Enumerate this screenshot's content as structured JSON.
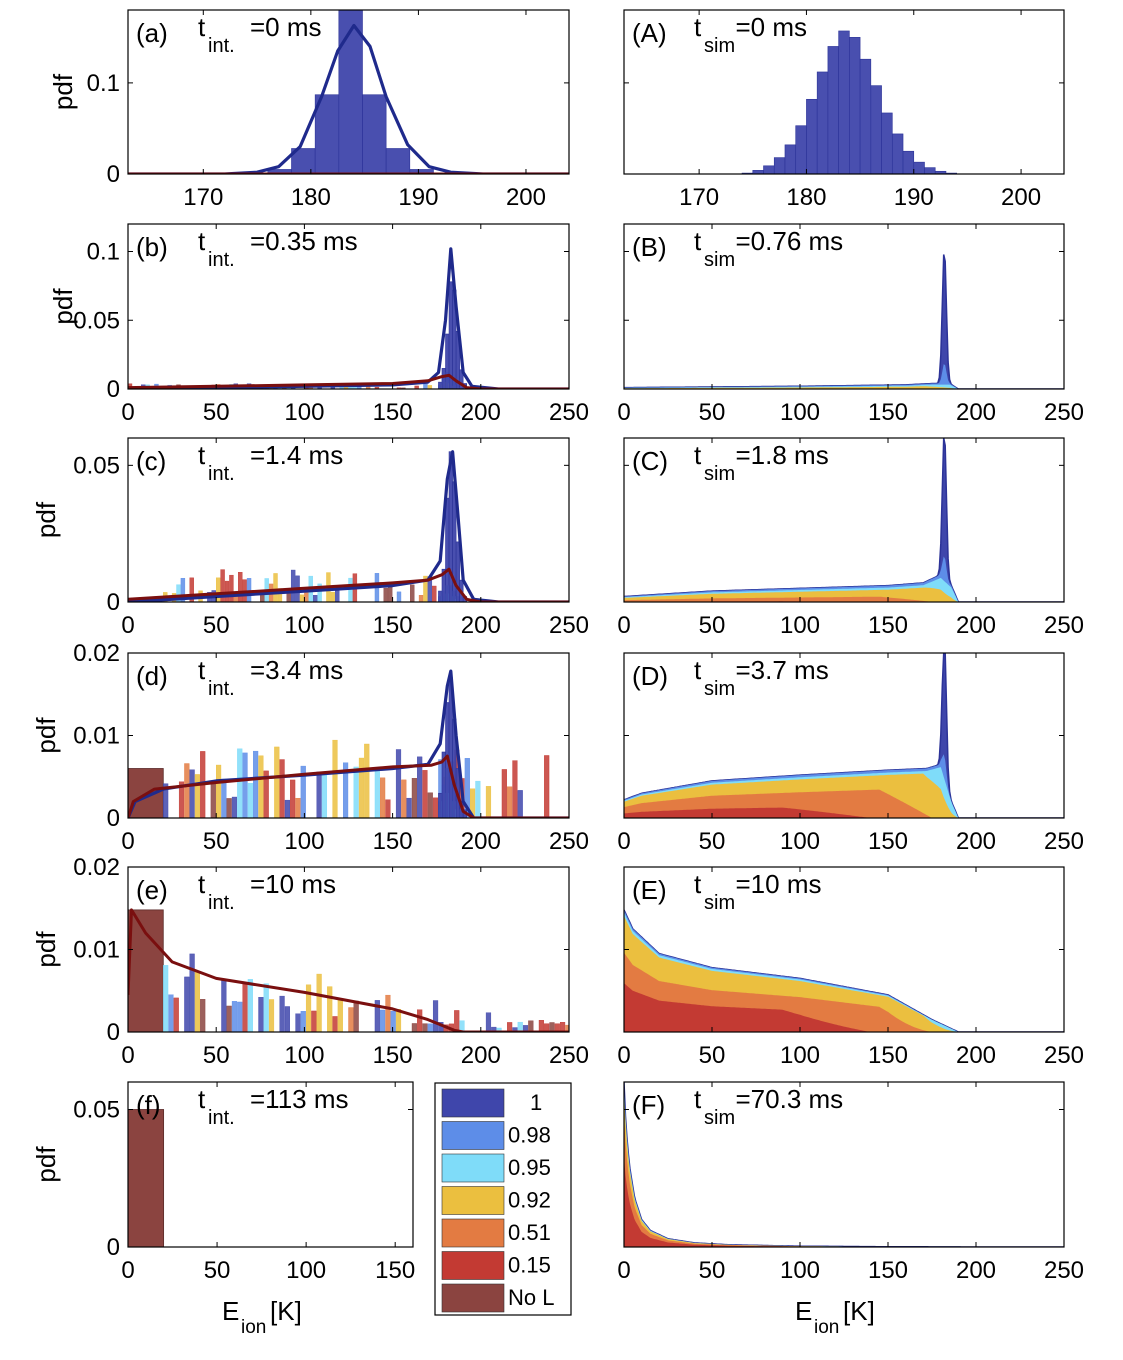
{
  "figure": {
    "xlabel_main": "E",
    "xlabel_sub": "ion",
    "xlabel_unit": " [K]",
    "ylabel": "pdf"
  },
  "legend": {
    "entries": [
      {
        "label": "1",
        "color": "#3f46ab"
      },
      {
        "label": "0.98",
        "color": "#5d8de8"
      },
      {
        "label": "0.95",
        "color": "#7fdcf9"
      },
      {
        "label": "0.92",
        "color": "#ebbf3f"
      },
      {
        "label": "0.51",
        "color": "#e37b42"
      },
      {
        "label": "0.15",
        "color": "#c33a33"
      },
      {
        "label": "No L",
        "color": "#8b4440"
      }
    ]
  },
  "colors": {
    "fit_line_blue": "#1f2a8c",
    "fit_line_red": "#7a0f0f",
    "axis": "#000000"
  },
  "chart_data": [
    {
      "id": "a",
      "type": "bar",
      "letter": "(a)",
      "t_main": "t",
      "t_sub": "int.",
      "t_rest": "=0 ms",
      "xlim": [
        163,
        204
      ],
      "ylim": [
        0,
        0.18
      ],
      "xticks": [
        170,
        180,
        190,
        200
      ],
      "yticks": [
        0,
        0.1
      ],
      "ytick_labels": [
        "0",
        "0.1"
      ],
      "bins": {
        "x0": 176,
        "w": 2.2,
        "series": {
          "1": [
            0.005,
            0.028,
            0.087,
            0.18,
            0.087,
            0.028,
            0.005
          ]
        }
      },
      "blue_line": [
        [
          163,
          0
        ],
        [
          172,
          0.0
        ],
        [
          175,
          0.002
        ],
        [
          177,
          0.008
        ],
        [
          179,
          0.03
        ],
        [
          181,
          0.085
        ],
        [
          182.5,
          0.135
        ],
        [
          184,
          0.163
        ],
        [
          185.5,
          0.14
        ],
        [
          187,
          0.085
        ],
        [
          189,
          0.032
        ],
        [
          191,
          0.008
        ],
        [
          193,
          0.002
        ],
        [
          196,
          0
        ],
        [
          204,
          0
        ]
      ],
      "red_line": [
        [
          163,
          0
        ],
        [
          204,
          0
        ]
      ]
    },
    {
      "id": "A",
      "type": "bar",
      "letter": "(A)",
      "t_main": "t",
      "t_sub": "sim",
      "t_rest": "=0 ms",
      "xlim": [
        163,
        204
      ],
      "ylim": [
        0,
        0.18
      ],
      "xticks": [
        170,
        180,
        190,
        200
      ],
      "yticks": [
        0,
        0.1
      ],
      "ytick_labels": [
        "",
        ""
      ],
      "bins": {
        "x0": 174,
        "w": 1,
        "series": {
          "1": [
            0.001,
            0.004,
            0.009,
            0.018,
            0.032,
            0.053,
            0.082,
            0.112,
            0.14,
            0.157,
            0.15,
            0.126,
            0.097,
            0.067,
            0.044,
            0.025,
            0.013,
            0.007,
            0.003,
            0.001
          ]
        }
      }
    },
    {
      "id": "b",
      "type": "bar",
      "letter": "(b)",
      "t_main": "t",
      "t_sub": "int.",
      "t_rest": "=0.35 ms",
      "xlim": [
        0,
        250
      ],
      "ylim": [
        0,
        0.12
      ],
      "xticks": [
        0,
        50,
        100,
        150,
        200,
        250
      ],
      "yticks": [
        0,
        0.05,
        0.1
      ],
      "ytick_labels": [
        "0",
        "0.05",
        "0.1"
      ],
      "bins": {
        "x0": 176,
        "w": 2,
        "series": {
          "1": [
            0.005,
            0.015,
            0.04,
            0.078,
            0.072,
            0.042,
            0.014,
            0.004
          ],
          "0.98": [
            0.003,
            0.008,
            0.012,
            0.01,
            0.006,
            0.003,
            0.001,
            0
          ],
          "0.92": [
            0.002,
            0.003,
            0.005,
            0.004,
            0.002,
            0,
            0,
            0
          ]
        }
      },
      "noise": {
        "x0": 0,
        "x1": 175,
        "w": 2.5,
        "max": 0.004,
        "seed": 3
      },
      "blue_line": [
        [
          0,
          0
        ],
        [
          50,
          0.001
        ],
        [
          100,
          0.002
        ],
        [
          150,
          0.003
        ],
        [
          170,
          0.005
        ],
        [
          176,
          0.012
        ],
        [
          180,
          0.05
        ],
        [
          183,
          0.102
        ],
        [
          186,
          0.06
        ],
        [
          190,
          0.012
        ],
        [
          195,
          0.002
        ],
        [
          210,
          0
        ],
        [
          250,
          0
        ]
      ],
      "red_line": [
        [
          0,
          0.001
        ],
        [
          50,
          0.002
        ],
        [
          100,
          0.003
        ],
        [
          150,
          0.004
        ],
        [
          170,
          0.006
        ],
        [
          178,
          0.009
        ],
        [
          182,
          0.01
        ],
        [
          186,
          0.006
        ],
        [
          192,
          0.001
        ],
        [
          200,
          0
        ],
        [
          250,
          0
        ]
      ]
    },
    {
      "id": "B",
      "type": "stack",
      "letter": "(B)",
      "t_main": "t",
      "t_sub": "sim",
      "t_rest": "=0.76 ms",
      "xlim": [
        0,
        250
      ],
      "ylim": [
        0,
        0.12
      ],
      "xticks": [
        0,
        50,
        100,
        150,
        200,
        250
      ],
      "yticks": [
        0,
        0.05,
        0.1
      ],
      "ytick_labels": [
        "",
        "",
        ""
      ],
      "profile": {
        "base": [
          [
            0,
            0.001
          ],
          [
            100,
            0.002
          ],
          [
            160,
            0.003
          ],
          [
            175,
            0.004
          ],
          [
            185,
            0.004
          ],
          [
            190,
            0
          ]
        ],
        "peak": {
          "center": 182,
          "height": 0.098,
          "width": 1.6
        },
        "fractions": {
          "0.15": 0.02,
          "0.51": 0.08,
          "0.92": 0.45,
          "0.95": 0.25,
          "0.98": 0.2
        }
      }
    },
    {
      "id": "c",
      "type": "bar",
      "letter": "(c)",
      "t_main": "t",
      "t_sub": "int.",
      "t_rest": "=1.4 ms",
      "xlim": [
        0,
        250
      ],
      "ylim": [
        0,
        0.06
      ],
      "xticks": [
        0,
        50,
        100,
        150,
        200,
        250
      ],
      "yticks": [
        0,
        0.05
      ],
      "ytick_labels": [
        "0",
        "0.05"
      ],
      "bins": {
        "x0": 176,
        "w": 2,
        "series": {
          "1": [
            0.004,
            0.012,
            0.038,
            0.055,
            0.044,
            0.022,
            0.008,
            0.002
          ],
          "0.98": [
            0.002,
            0.004,
            0.006,
            0.006,
            0.004,
            0.002,
            0,
            0
          ],
          "0.95": [
            0.001,
            0.002,
            0.003,
            0.003,
            0.002,
            0.001,
            0,
            0
          ]
        }
      },
      "noise": {
        "x0": 20,
        "x1": 176,
        "w": 2.5,
        "max": 0.012,
        "seed": 7
      },
      "blue_line": [
        [
          0,
          0
        ],
        [
          50,
          0.002
        ],
        [
          100,
          0.004
        ],
        [
          150,
          0.006
        ],
        [
          170,
          0.008
        ],
        [
          177,
          0.015
        ],
        [
          181,
          0.045
        ],
        [
          184,
          0.055
        ],
        [
          187,
          0.032
        ],
        [
          190,
          0.008
        ],
        [
          196,
          0.001
        ],
        [
          210,
          0
        ],
        [
          250,
          0
        ]
      ],
      "red_line": [
        [
          0,
          0.001
        ],
        [
          50,
          0.003
        ],
        [
          100,
          0.005
        ],
        [
          150,
          0.007
        ],
        [
          170,
          0.008
        ],
        [
          178,
          0.01
        ],
        [
          182,
          0.012
        ],
        [
          186,
          0.006
        ],
        [
          192,
          0.001
        ],
        [
          200,
          0
        ],
        [
          250,
          0
        ]
      ]
    },
    {
      "id": "C",
      "type": "stack",
      "letter": "(C)",
      "t_main": "t",
      "t_sub": "sim",
      "t_rest": "=1.8 ms",
      "xlim": [
        0,
        250
      ],
      "ylim": [
        0,
        0.06
      ],
      "xticks": [
        0,
        50,
        100,
        150,
        200,
        250
      ],
      "yticks": [
        0,
        0.05
      ],
      "ytick_labels": [
        "",
        ""
      ],
      "profile": {
        "base": [
          [
            0,
            0.002
          ],
          [
            50,
            0.004
          ],
          [
            100,
            0.005
          ],
          [
            150,
            0.006
          ],
          [
            170,
            0.007
          ],
          [
            180,
            0.01
          ],
          [
            186,
            0.006
          ],
          [
            190,
            0
          ]
        ],
        "peak": {
          "center": 182,
          "height": 0.054,
          "width": 1.6
        },
        "fractions": {
          "0.15": 0.05,
          "0.51": 0.28,
          "0.92": 0.42,
          "0.95": 0.13,
          "0.98": 0.12
        }
      }
    },
    {
      "id": "d",
      "type": "bar",
      "letter": "(d)",
      "t_main": "t",
      "t_sub": "int.",
      "t_rest": "=3.4 ms",
      "xlim": [
        0,
        250
      ],
      "ylim": [
        0,
        0.02
      ],
      "xticks": [
        0,
        50,
        100,
        150,
        200,
        250
      ],
      "yticks": [
        0,
        0.01,
        0.02
      ],
      "ytick_labels": [
        "0",
        "0.01",
        "0.02"
      ],
      "nol": [
        0,
        20,
        0.006
      ],
      "bins": {
        "x0": 176,
        "w": 2,
        "series": {
          "1": [
            0.003,
            0.008,
            0.014,
            0.017,
            0.012,
            0.006,
            0.002,
            0.001
          ],
          "0.98": [
            0.002,
            0.004,
            0.006,
            0.006,
            0.004,
            0.002,
            0.001,
            0
          ],
          "0.95": [
            0.001,
            0.002,
            0.003,
            0.003,
            0.002,
            0.001,
            0,
            0
          ]
        }
      },
      "noise": {
        "x0": 20,
        "x1": 240,
        "w": 3,
        "max": 0.0095,
        "seed": 11
      },
      "blue_line": [
        [
          0,
          0
        ],
        [
          4,
          0.002
        ],
        [
          20,
          0.0035
        ],
        [
          50,
          0.0045
        ],
        [
          100,
          0.0052
        ],
        [
          150,
          0.006
        ],
        [
          170,
          0.0065
        ],
        [
          177,
          0.009
        ],
        [
          181,
          0.016
        ],
        [
          183,
          0.0178
        ],
        [
          186,
          0.01
        ],
        [
          190,
          0.002
        ],
        [
          196,
          0
        ],
        [
          250,
          0
        ]
      ],
      "red_line": [
        [
          0,
          0
        ],
        [
          3,
          0.002
        ],
        [
          15,
          0.0035
        ],
        [
          50,
          0.0043
        ],
        [
          100,
          0.0053
        ],
        [
          150,
          0.0062
        ],
        [
          172,
          0.0064
        ],
        [
          178,
          0.0068
        ],
        [
          181,
          0.0075
        ],
        [
          185,
          0.004
        ],
        [
          190,
          0.0008
        ],
        [
          196,
          0
        ],
        [
          250,
          0
        ]
      ]
    },
    {
      "id": "D",
      "type": "stack",
      "letter": "(D)",
      "t_main": "t",
      "t_sub": "sim",
      "t_rest": "=3.7 ms",
      "xlim": [
        0,
        250
      ],
      "ylim": [
        0,
        0.02
      ],
      "xticks": [
        0,
        50,
        100,
        150,
        200,
        250
      ],
      "yticks": [
        0,
        0.01,
        0.02
      ],
      "ytick_labels": [
        "",
        "",
        ""
      ],
      "profile": {
        "base": [
          [
            0,
            0.0022
          ],
          [
            10,
            0.003
          ],
          [
            50,
            0.0045
          ],
          [
            100,
            0.0052
          ],
          [
            150,
            0.0058
          ],
          [
            172,
            0.006
          ],
          [
            180,
            0.0065
          ],
          [
            186,
            0.002
          ],
          [
            190,
            0
          ]
        ],
        "peak": {
          "center": 182,
          "height": 0.0173,
          "width": 1.6
        },
        "fractions": {
          "0.15": 0.25,
          "0.51": 0.35,
          "0.92": 0.3,
          "0.95": 0.05,
          "0.98": 0.05
        }
      }
    },
    {
      "id": "e",
      "type": "bar",
      "letter": "(e)",
      "t_main": "t",
      "t_sub": "int.",
      "t_rest": "=10 ms",
      "xlim": [
        0,
        250
      ],
      "ylim": [
        0,
        0.02
      ],
      "xticks": [
        0,
        50,
        100,
        150,
        200,
        250
      ],
      "yticks": [
        0,
        0.01,
        0.02
      ],
      "ytick_labels": [
        "0",
        "0.01",
        "0.02"
      ],
      "nol": [
        0,
        20,
        0.0148
      ],
      "noise": {
        "x0": 20,
        "x1": 250,
        "w": 3,
        "max": 0.012,
        "seed": 19
      },
      "red_line": [
        [
          0,
          0.0045
        ],
        [
          2,
          0.0148
        ],
        [
          10,
          0.012
        ],
        [
          25,
          0.0085
        ],
        [
          50,
          0.0065
        ],
        [
          100,
          0.0048
        ],
        [
          150,
          0.0028
        ],
        [
          170,
          0.0015
        ],
        [
          185,
          0.0002
        ],
        [
          190,
          0
        ],
        [
          250,
          0
        ]
      ]
    },
    {
      "id": "E",
      "type": "stack",
      "letter": "(E)",
      "t_main": "t",
      "t_sub": "sim",
      "t_rest": "=10 ms",
      "xlim": [
        0,
        250
      ],
      "ylim": [
        0,
        0.02
      ],
      "xticks": [
        0,
        50,
        100,
        150,
        200,
        250
      ],
      "yticks": [
        0,
        0.01,
        0.02
      ],
      "ytick_labels": [
        "",
        "",
        ""
      ],
      "profile": {
        "base": [
          [
            0,
            0.0148
          ],
          [
            5,
            0.0125
          ],
          [
            20,
            0.0095
          ],
          [
            50,
            0.0078
          ],
          [
            100,
            0.0065
          ],
          [
            150,
            0.0045
          ],
          [
            175,
            0.0015
          ],
          [
            190,
            0
          ]
        ],
        "fractions": {
          "0.15": 0.4,
          "0.51": 0.25,
          "0.92": 0.3,
          "0.95": 0.03,
          "0.98": 0.02
        }
      }
    },
    {
      "id": "f",
      "type": "bar",
      "letter": "(f)",
      "t_main": "t",
      "t_sub": "int.",
      "t_rest": "=113 ms",
      "xlim": [
        0,
        160
      ],
      "ylim": [
        0,
        0.06
      ],
      "xticks": [
        0,
        50,
        100,
        150
      ],
      "yticks": [
        0,
        0.05
      ],
      "ytick_labels": [
        "0",
        "0.05"
      ],
      "nol": [
        0,
        20,
        0.05
      ]
    },
    {
      "id": "F",
      "type": "stack",
      "letter": "(F)",
      "t_main": "t",
      "t_sub": "sim",
      "t_rest": "=70.3 ms",
      "xlim": [
        0,
        250
      ],
      "ylim": [
        0,
        0.06
      ],
      "xticks": [
        0,
        50,
        100,
        150,
        200,
        250
      ],
      "yticks": [
        0,
        0.05
      ],
      "ytick_labels": [
        "",
        ""
      ],
      "profile": {
        "base": [
          [
            0,
            0.06
          ],
          [
            1,
            0.045
          ],
          [
            3,
            0.03
          ],
          [
            6,
            0.018
          ],
          [
            10,
            0.01
          ],
          [
            15,
            0.006
          ],
          [
            25,
            0.003
          ],
          [
            40,
            0.0015
          ],
          [
            60,
            0.0008
          ],
          [
            100,
            0.0003
          ],
          [
            150,
            0.0001
          ],
          [
            200,
            0
          ],
          [
            250,
            0
          ]
        ],
        "fractions": {
          "0.15": 0.55,
          "0.51": 0.25,
          "0.92": 0.15,
          "0.95": 0.03,
          "0.98": 0.02
        }
      }
    }
  ]
}
